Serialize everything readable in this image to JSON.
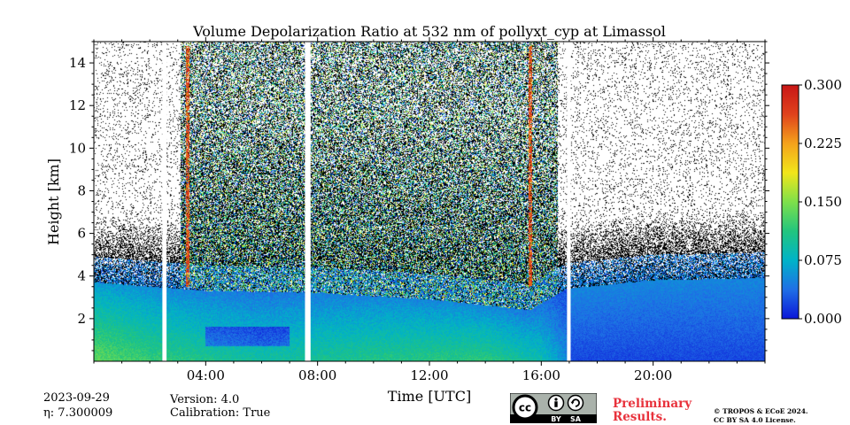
{
  "chart_data": {
    "type": "heatmap",
    "title": "Volume Depolarization Ratio at 532 nm of pollyxt_cyp at Limassol",
    "xlabel": "Time [UTC]",
    "ylabel": "Height [km]",
    "xlim": [
      0,
      24
    ],
    "ylim": [
      0,
      15
    ],
    "x_ticks": [
      4,
      8,
      12,
      16,
      20
    ],
    "x_tick_labels": [
      "04:00",
      "08:00",
      "12:00",
      "16:00",
      "20:00"
    ],
    "y_ticks": [
      2,
      4,
      6,
      8,
      10,
      12,
      14
    ],
    "y_tick_labels": [
      "2",
      "4",
      "6",
      "8",
      "10",
      "12",
      "14"
    ],
    "colorbar": {
      "min": 0.0,
      "max": 0.3,
      "ticks": [
        0.0,
        0.075,
        0.15,
        0.225,
        0.3
      ],
      "tick_labels": [
        "0.000",
        "0.075",
        "0.150",
        "0.225",
        "0.300"
      ],
      "colors": [
        "#0c17d8",
        "#1f6fe6",
        "#00b3c8",
        "#22c57e",
        "#7ee04a",
        "#f2e61a",
        "#f4a21c",
        "#e0421c",
        "#c81616"
      ]
    },
    "data_gaps_utc": [
      [
        2.45,
        2.6
      ],
      [
        7.55,
        7.75
      ],
      [
        16.92,
        17.05
      ]
    ],
    "layer_top_km": [
      {
        "t": 0,
        "h": 3.7
      },
      {
        "t": 4,
        "h": 3.3
      },
      {
        "t": 8,
        "h": 3.2
      },
      {
        "t": 12,
        "h": 2.9
      },
      {
        "t": 15.6,
        "h": 2.4
      },
      {
        "t": 16.9,
        "h": 3.4
      },
      {
        "t": 20,
        "h": 3.8
      },
      {
        "t": 24,
        "h": 3.9
      }
    ],
    "surface_depol": [
      {
        "t": 0,
        "v": 0.14
      },
      {
        "t": 2,
        "v": 0.12
      },
      {
        "t": 6,
        "v": 0.095
      },
      {
        "t": 10,
        "v": 0.11
      },
      {
        "t": 14,
        "v": 0.115
      },
      {
        "t": 16,
        "v": 0.09
      },
      {
        "t": 17.5,
        "v": 0.025
      },
      {
        "t": 24,
        "v": 0.03
      }
    ],
    "noise_region_utc": [
      3.1,
      16.6
    ],
    "high_depol_streaks_utc": [
      3.35,
      15.6
    ]
  },
  "date": "2023-09-29",
  "eta_label": "η: 7.300009",
  "version_label": "Version: 4.0",
  "calibration_label": "Calibration: True",
  "license_badge": {
    "cc": "cc",
    "by": "BY",
    "sa": "SA"
  },
  "prelim_line1": "Preliminary",
  "prelim_line2": "Results.",
  "copyright_line1": "© TROPOS & ECoE 2024.",
  "copyright_line2": "CC BY SA 4.0 License."
}
